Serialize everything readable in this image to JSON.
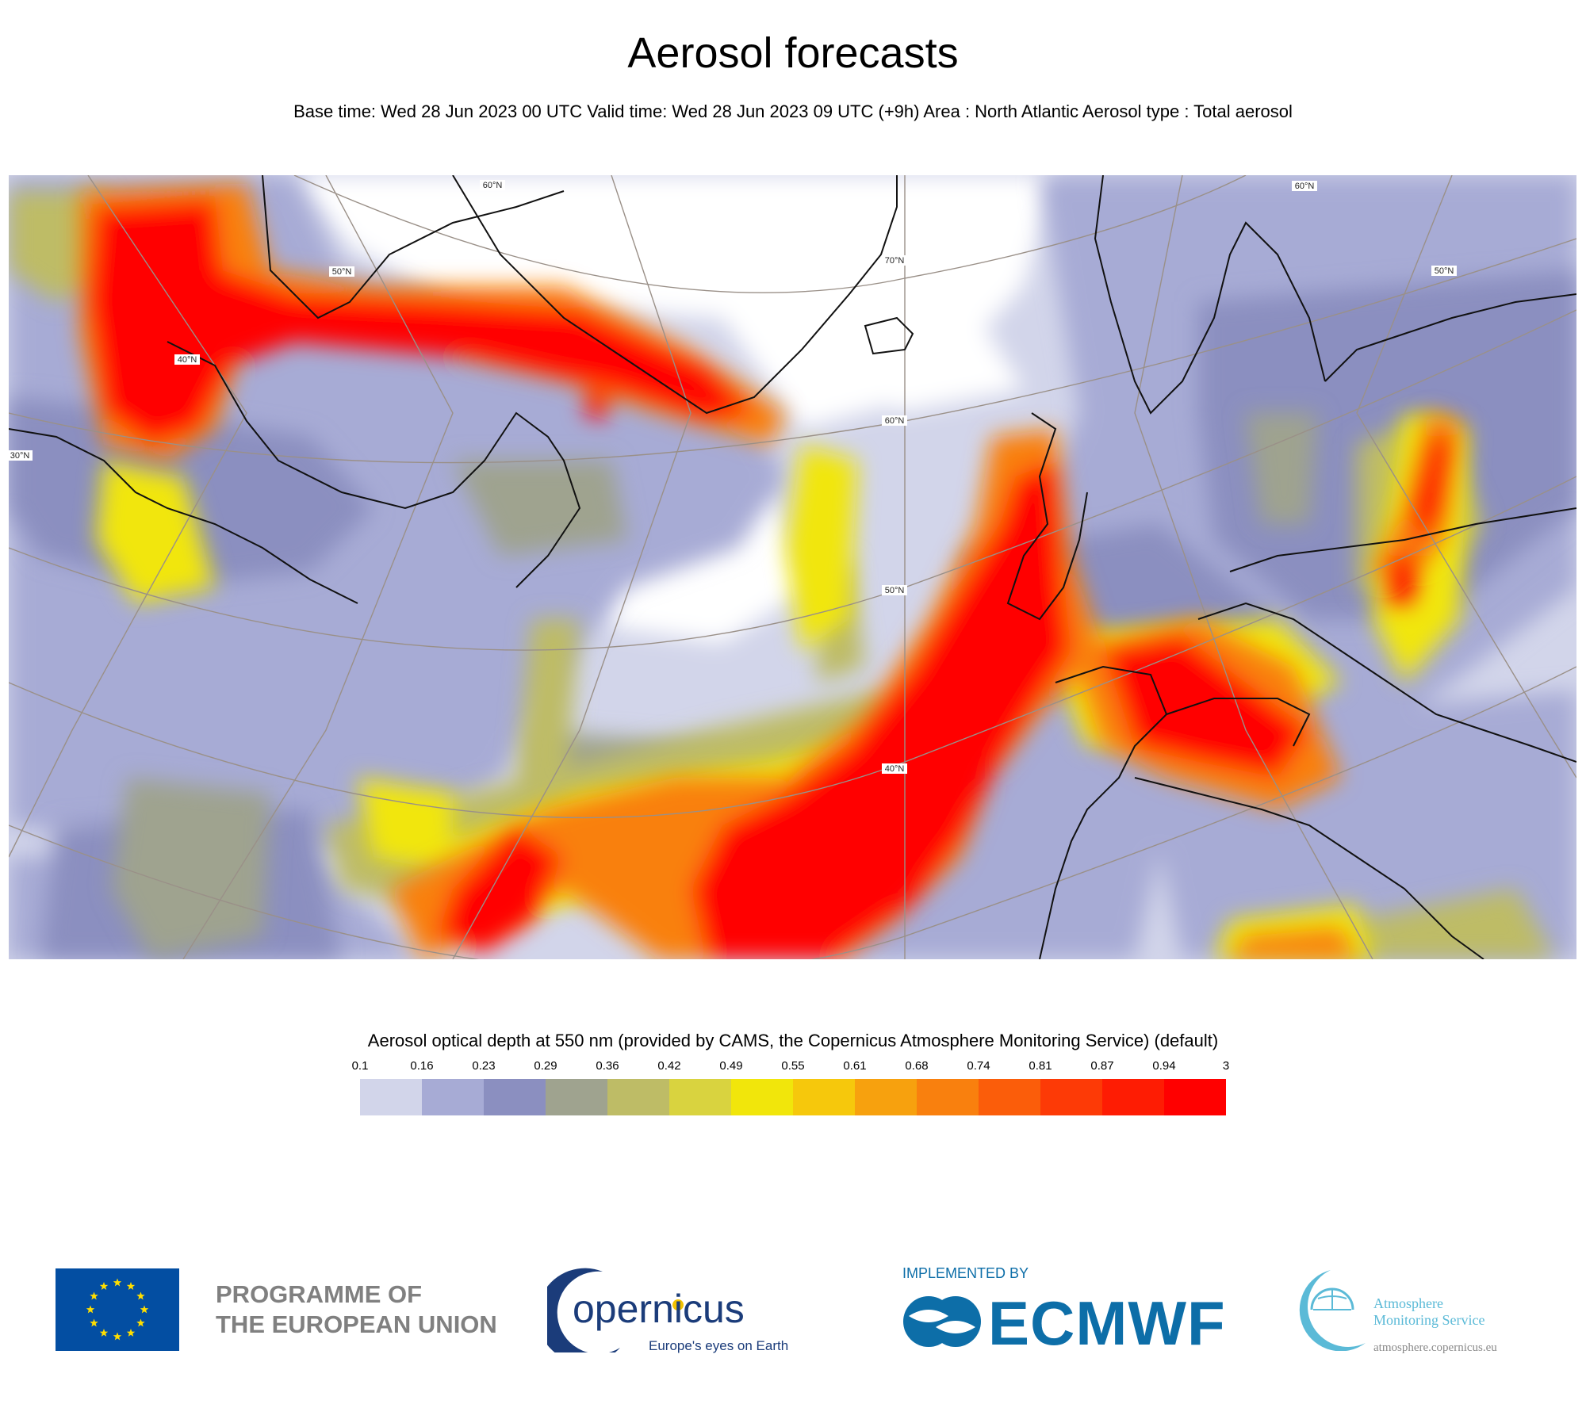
{
  "header": {
    "title": "Aerosol forecasts",
    "subtitle": "Base time: Wed 28 Jun 2023 00 UTC Valid time: Wed 28 Jun 2023 09 UTC (+9h) Area : North Atlantic Aerosol type : Total aerosol"
  },
  "map": {
    "lat_labels": [
      "60°N",
      "70°N",
      "60°N",
      "50°N",
      "40°N",
      "40°N",
      "30°N",
      "50°N",
      "60°N",
      "50°N"
    ],
    "colors": {
      "land_outline": "#111111",
      "graticule": "#9a9088",
      "background": "#d2d5ea"
    }
  },
  "legend": {
    "title": "Aerosol optical depth at 550 nm (provided by CAMS, the Copernicus Atmosphere Monitoring Service) (default)",
    "ticks": [
      "0.1",
      "0.16",
      "0.23",
      "0.29",
      "0.36",
      "0.42",
      "0.49",
      "0.55",
      "0.61",
      "0.68",
      "0.74",
      "0.81",
      "0.87",
      "0.94",
      "3"
    ],
    "colors": [
      "#d2d5ea",
      "#a7abd5",
      "#8b8fc0",
      "#9fa38f",
      "#bebc66",
      "#d9d33f",
      "#f1e60b",
      "#f6c80c",
      "#f7a10e",
      "#f9800e",
      "#fb5d0a",
      "#fd3a06",
      "#fe1c03",
      "#ff0000"
    ]
  },
  "footer": {
    "eu_line1": "PROGRAMME OF",
    "eu_line2": "THE EUROPEAN UNION",
    "copernicus_name": "opernicus",
    "copernicus_tagline": "Europe's eyes on Earth",
    "implemented_by": "IMPLEMENTED BY",
    "ecmwf": "ECMWF",
    "ams_line1": "Atmosphere",
    "ams_line2": "Monitoring Service",
    "ams_url": "atmosphere.copernicus.eu",
    "colors": {
      "eu_blue": "#034ea2",
      "eu_star": "#ffde00",
      "ecmwf_blue": "#0d6ea8",
      "copernicus_navy": "#1b3c7a",
      "ams_cyan": "#5bbad7"
    }
  }
}
